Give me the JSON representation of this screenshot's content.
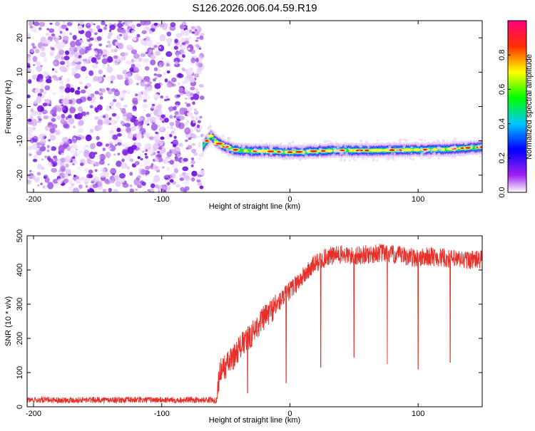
{
  "page_title": "S126.2026.006.04.59.R19",
  "chart_data": [
    {
      "type": "heatmap",
      "title": "S126.2026.006.04.59.R19",
      "xlabel": "Height of straight line (km)",
      "ylabel": "Frequency (Hz)",
      "xlim": [
        -205,
        150
      ],
      "ylim": [
        -25,
        25
      ],
      "xticks": [
        -200,
        -100,
        0,
        100
      ],
      "yticks": [
        -20,
        -10,
        0,
        10,
        20
      ],
      "colorbar": {
        "label": "Normalized spectral amplitude",
        "range": [
          0,
          1
        ],
        "ticks": [
          0.0,
          0.2,
          0.4,
          0.6,
          0.8
        ]
      },
      "noise_region_x": [
        -205,
        -68
      ],
      "signal_track": {
        "x": [
          -68,
          -62,
          -58,
          -52,
          -45,
          -38,
          -30,
          -20,
          -10,
          0,
          10,
          20,
          40,
          60,
          80,
          100,
          120,
          140,
          150
        ],
        "frequency": [
          -11.5,
          -8.5,
          -10.2,
          -11.5,
          -12.5,
          -12.8,
          -13.0,
          -13.0,
          -13.2,
          -13.3,
          -13.2,
          -13.0,
          -12.8,
          -12.8,
          -12.7,
          -12.6,
          -12.5,
          -12.0,
          -11.8
        ]
      }
    },
    {
      "type": "line",
      "xlabel": "Height of straight line (km)",
      "ylabel": "SNR (10 * v/v)",
      "xlim": [
        -205,
        150
      ],
      "ylim": [
        0,
        500
      ],
      "xticks": [
        -200,
        -100,
        0,
        100
      ],
      "yticks": [
        0,
        100,
        200,
        300,
        400,
        500
      ],
      "color": "#e8302a",
      "series": [
        {
          "x": [
            -205,
            -190,
            -170,
            -150,
            -130,
            -110,
            -90,
            -70,
            -60,
            -57,
            -55,
            -50,
            -45,
            -40,
            -35,
            -30,
            -25,
            -20,
            -15,
            -10,
            -5,
            0,
            5,
            10,
            15,
            20,
            25,
            30,
            40,
            50,
            60,
            70,
            80,
            90,
            100,
            110,
            120,
            130,
            140,
            150
          ],
          "values": [
            20,
            20,
            20,
            20,
            20,
            20,
            20,
            20,
            20,
            20,
            100,
            120,
            140,
            170,
            190,
            210,
            240,
            260,
            280,
            300,
            320,
            340,
            360,
            380,
            400,
            420,
            430,
            440,
            445,
            440,
            445,
            450,
            445,
            440,
            435,
            440,
            435,
            430,
            430,
            430
          ]
        }
      ],
      "dips": [
        {
          "x": -33,
          "value": 40
        },
        {
          "x": -3,
          "value": 70
        },
        {
          "x": 24,
          "value": 115
        },
        {
          "x": 50,
          "value": 145
        },
        {
          "x": 76,
          "value": 125
        },
        {
          "x": 100,
          "value": 110
        },
        {
          "x": 125,
          "value": 130
        }
      ]
    }
  ]
}
